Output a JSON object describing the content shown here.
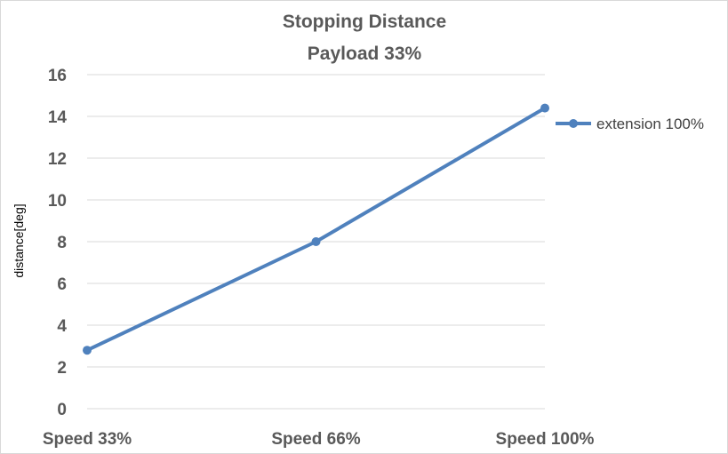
{
  "chart_data": {
    "type": "line",
    "title": "Stopping Distance",
    "subtitle": "Payload 33%",
    "ylabel": "distance[deg]",
    "xlabel": "",
    "categories": [
      "Speed 33%",
      "Speed 66%",
      "Speed 100%"
    ],
    "ylim": [
      0,
      16
    ],
    "yticks": [
      0,
      2,
      4,
      6,
      8,
      10,
      12,
      14,
      16
    ],
    "grid": true,
    "legend_position": "right",
    "series": [
      {
        "name": "extension 100%",
        "values": [
          2.8,
          8.0,
          14.4
        ],
        "color": "#4f81bd"
      }
    ]
  }
}
